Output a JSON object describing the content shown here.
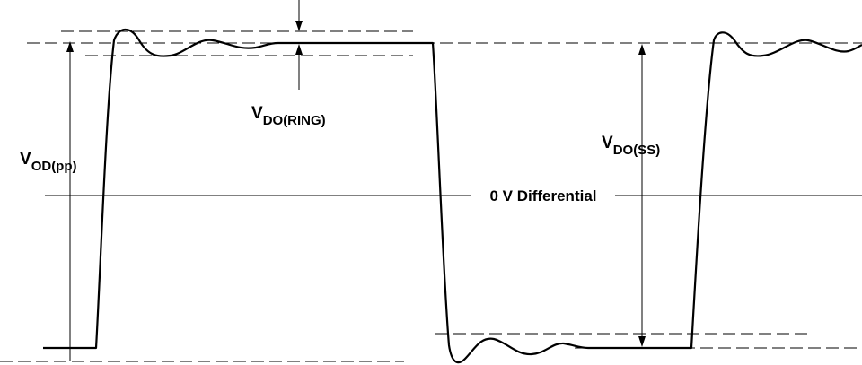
{
  "labels": [
    {
      "main": "V",
      "sub": "OD(pp)"
    },
    {
      "main": "V",
      "sub": "DO(RING)"
    },
    {
      "main": "V",
      "sub": "DO(SS)"
    }
  ],
  "axis_label": "0 V Differential"
}
